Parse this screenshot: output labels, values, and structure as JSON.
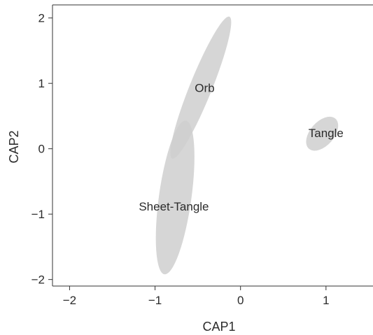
{
  "chart_data": {
    "type": "scatter",
    "xlabel": "CAP1",
    "ylabel": "CAP2",
    "xlim": [
      -2.2,
      1.55
    ],
    "ylim": [
      -2.1,
      2.2
    ],
    "x_ticks": [
      -2,
      -1,
      0,
      1
    ],
    "y_ticks": [
      -2,
      -1,
      0,
      1,
      2
    ],
    "x_tick_labels": [
      "−2",
      "−1",
      "0",
      "1"
    ],
    "y_tick_labels": [
      "−2",
      "−1",
      "0",
      "1",
      "2"
    ],
    "grid": false,
    "ellipse_color": "#cfcfcf",
    "series": [
      {
        "name": "Orb",
        "center": [
          -0.44,
          0.93
        ],
        "corners": [
          [
            -0.13,
            2.02
          ],
          [
            -0.8,
            -0.15
          ]
        ],
        "semi_minor": 0.13,
        "label_pos": [
          -0.42,
          0.93
        ]
      },
      {
        "name": "Sheet-Tangle",
        "center": [
          -0.76,
          -0.88
        ],
        "corners": [
          [
            -0.64,
            0.43
          ],
          [
            -0.89,
            -1.92
          ]
        ],
        "semi_minor": 0.19,
        "label_pos": [
          -0.78,
          -0.88
        ]
      },
      {
        "name": "Tangle",
        "center": [
          0.95,
          0.25
        ],
        "corners": [
          [
            1.11,
            0.46
          ],
          [
            0.8,
            0.0
          ]
        ],
        "semi_minor": 0.14,
        "label_pos": [
          1.0,
          0.24
        ]
      }
    ]
  }
}
